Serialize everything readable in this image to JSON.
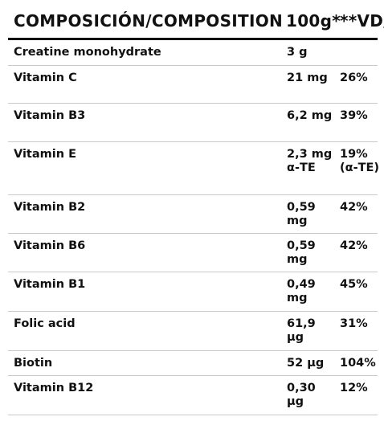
{
  "header": {
    "composition": "COMPOSICIÓN/COMPOSITION",
    "per_100g": "100g*",
    "vd": "**VD/"
  },
  "rows": [
    {
      "name": "Creatine monohydrate",
      "amount": "3 g",
      "vd": ""
    },
    {
      "name": "Vitamin C",
      "amount": "21 mg",
      "vd": "26%"
    },
    {
      "name": "Vitamin B3",
      "amount": "6,2 mg",
      "vd": "39%"
    },
    {
      "name": "Vitamin E",
      "amount": "2,3 mg α-TE",
      "vd": "19% (α-TE)"
    },
    {
      "name": "Vitamin B2",
      "amount": "0,59 mg",
      "vd": "42%"
    },
    {
      "name": "Vitamin B6",
      "amount": "0,59 mg",
      "vd": "42%"
    },
    {
      "name": "Vitamin B1",
      "amount": "0,49 mg",
      "vd": "45%"
    },
    {
      "name": "Folic acid",
      "amount": "61,9 µg",
      "vd": "31%"
    },
    {
      "name": "Biotin",
      "amount": "52 µg",
      "vd": "104%"
    },
    {
      "name": "Vitamin B12",
      "amount": "0,30 µg",
      "vd": "12%"
    }
  ]
}
